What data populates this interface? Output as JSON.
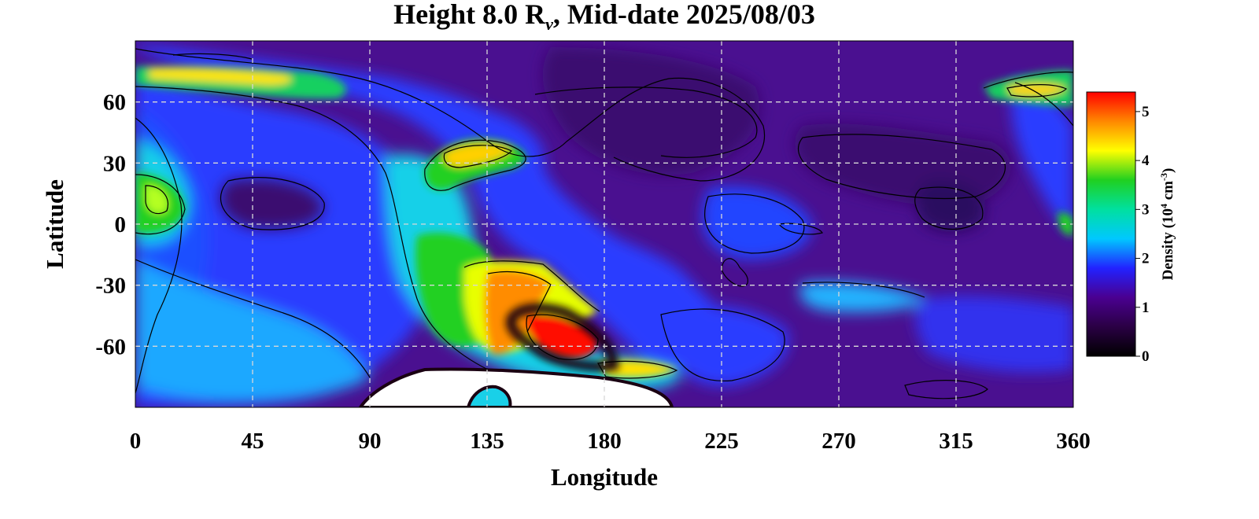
{
  "chart_data": {
    "type": "heatmap",
    "title_prefix": "Height 8.0 R",
    "title_sub": "ν",
    "title_suffix": ", Mid-date 2025/08/03",
    "xlabel": "Longitude",
    "ylabel": "Latitude",
    "xlim": [
      0,
      360
    ],
    "ylim": [
      -90,
      90
    ],
    "x_ticks": [
      0,
      45,
      90,
      135,
      180,
      225,
      270,
      315,
      360
    ],
    "y_ticks": [
      60,
      30,
      0,
      -30,
      -60
    ],
    "grid": true,
    "colorbar": {
      "label_prefix": "Density (10",
      "label_sup1": "4",
      "label_mid": " cm",
      "label_sup2": "-3",
      "label_suffix": ")",
      "range": [
        0,
        5.4
      ],
      "ticks": [
        0,
        1,
        2,
        3,
        4,
        5
      ],
      "colormap": [
        "#000000",
        "#2a0044",
        "#4a0090",
        "#2222ff",
        "#00c8ff",
        "#00e0a0",
        "#20d020",
        "#ffff00",
        "#ff8800",
        "#ff0000"
      ],
      "placement": "right"
    },
    "background_density": 0.95,
    "features": [
      {
        "region": "polar band near 70°N, 0°-60°E",
        "lon": 30,
        "lat": 73,
        "density": 4.3
      },
      {
        "region": "polar band near 68°N, 340°-360°E",
        "lon": 348,
        "lat": 66,
        "density": 4.2
      },
      {
        "region": "yellow spot near 35°N, 140°E",
        "lon": 143,
        "lat": 35,
        "density": 4.5
      },
      {
        "region": "green lobe near 15°N, 10°E",
        "lon": 10,
        "lat": 15,
        "density": 3.6
      },
      {
        "region": "orange region near -35°S, 145°E",
        "lon": 150,
        "lat": -38,
        "density": 4.7
      },
      {
        "region": "red core near -55°S, 160°E",
        "lon": 160,
        "lat": -55,
        "density": 5.3
      },
      {
        "region": "dark gap near -70°S, 180°E",
        "lon": 182,
        "lat": -70,
        "density": 0.1
      },
      {
        "region": "blue dome near 10°N, 50°E",
        "lon": 50,
        "lat": 10,
        "density": 0.8
      }
    ]
  }
}
